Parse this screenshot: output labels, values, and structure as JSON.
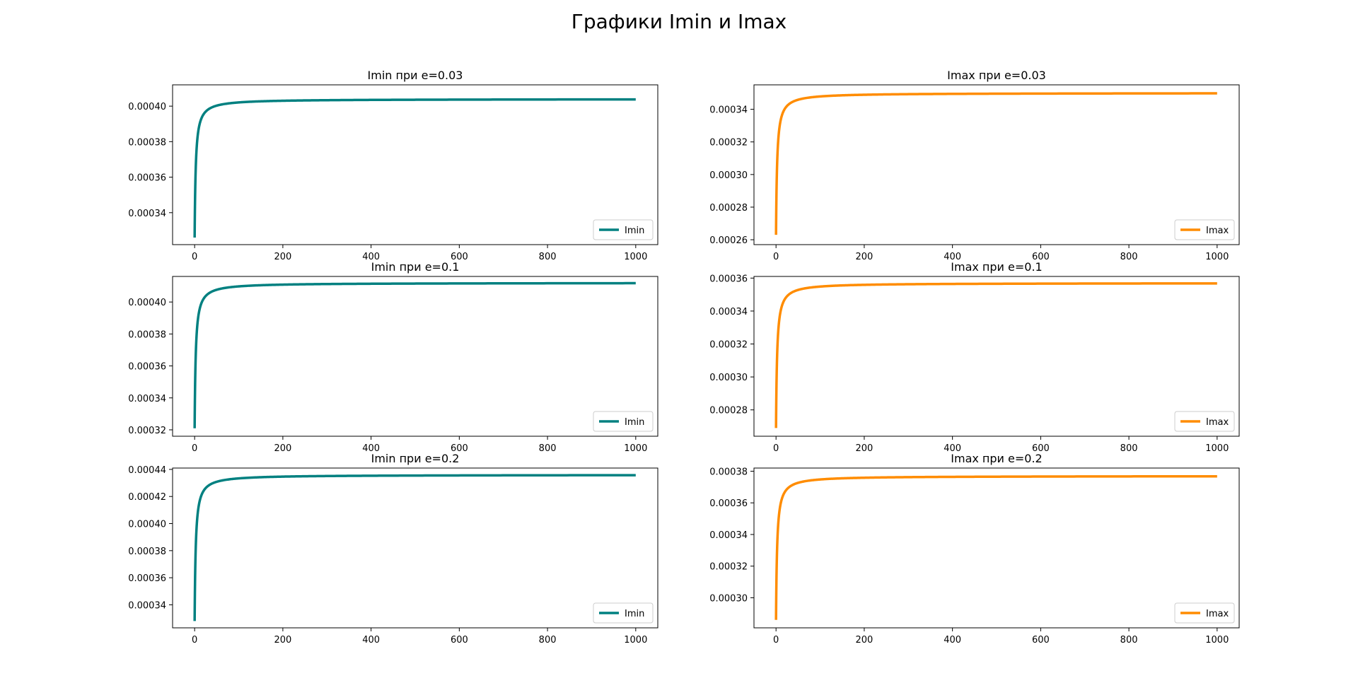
{
  "suptitle": "Графики Imin и Imax",
  "chart_data": [
    {
      "type": "line",
      "title": "Imin при e=0.03",
      "color": "#008080",
      "xlim": [
        -50,
        1050
      ],
      "ylim": [
        0.000322,
        0.000412
      ],
      "xticks": [
        0,
        200,
        400,
        600,
        800,
        1000
      ],
      "yticks": [
        0.00034,
        0.00036,
        0.00038,
        0.0004
      ],
      "ytick_labels": [
        "0.00034",
        "0.00036",
        "0.00038",
        "0.00040"
      ],
      "legend": "lower-right",
      "series": [
        {
          "name": "Imin",
          "start": [
            0,
            0.000326
          ],
          "asymptote": 0.000404,
          "x_max": 1000
        }
      ]
    },
    {
      "type": "line",
      "title": "Imax при e=0.03",
      "color": "#ff8c00",
      "xlim": [
        -50,
        1050
      ],
      "ylim": [
        0.000257,
        0.000355
      ],
      "xticks": [
        0,
        200,
        400,
        600,
        800,
        1000
      ],
      "yticks": [
        0.00026,
        0.00028,
        0.0003,
        0.00032,
        0.00034
      ],
      "ytick_labels": [
        "0.00026",
        "0.00028",
        "0.00030",
        "0.00032",
        "0.00034"
      ],
      "legend": "lower-right",
      "series": [
        {
          "name": "Imax",
          "start": [
            0,
            0.000263
          ],
          "asymptote": 0.00035,
          "x_max": 1000
        }
      ]
    },
    {
      "type": "line",
      "title": "Imin при e=0.1",
      "color": "#008080",
      "xlim": [
        -50,
        1050
      ],
      "ylim": [
        0.000316,
        0.000416
      ],
      "xticks": [
        0,
        200,
        400,
        600,
        800,
        1000
      ],
      "yticks": [
        0.00032,
        0.00034,
        0.00036,
        0.00038,
        0.0004
      ],
      "ytick_labels": [
        "0.00032",
        "0.00034",
        "0.00036",
        "0.00038",
        "0.00040"
      ],
      "legend": "lower-right",
      "series": [
        {
          "name": "Imin",
          "start": [
            0,
            0.000321
          ],
          "asymptote": 0.000412,
          "x_max": 1000
        }
      ]
    },
    {
      "type": "line",
      "title": "Imax при e=0.1",
      "color": "#ff8c00",
      "xlim": [
        -50,
        1050
      ],
      "ylim": [
        0.000264,
        0.000361
      ],
      "xticks": [
        0,
        200,
        400,
        600,
        800,
        1000
      ],
      "yticks": [
        0.00028,
        0.0003,
        0.00032,
        0.00034,
        0.00036
      ],
      "ytick_labels": [
        "0.00028",
        "0.00030",
        "0.00032",
        "0.00034",
        "0.00036"
      ],
      "legend": "lower-right",
      "series": [
        {
          "name": "Imax",
          "start": [
            0,
            0.000269
          ],
          "asymptote": 0.000357,
          "x_max": 1000
        }
      ]
    },
    {
      "type": "line",
      "title": "Imin при e=0.2",
      "color": "#008080",
      "xlim": [
        -50,
        1050
      ],
      "ylim": [
        0.000323,
        0.000441
      ],
      "xticks": [
        0,
        200,
        400,
        600,
        800,
        1000
      ],
      "yticks": [
        0.00034,
        0.00036,
        0.00038,
        0.0004,
        0.00042,
        0.00044
      ],
      "ytick_labels": [
        "0.00034",
        "0.00036",
        "0.00038",
        "0.00040",
        "0.00042",
        "0.00044"
      ],
      "legend": "lower-right",
      "series": [
        {
          "name": "Imin",
          "start": [
            0,
            0.000328
          ],
          "asymptote": 0.000436,
          "x_max": 1000
        }
      ]
    },
    {
      "type": "line",
      "title": "Imax при e=0.2",
      "color": "#ff8c00",
      "xlim": [
        -50,
        1050
      ],
      "ylim": [
        0.000281,
        0.000382
      ],
      "xticks": [
        0,
        200,
        400,
        600,
        800,
        1000
      ],
      "yticks": [
        0.0003,
        0.00032,
        0.00034,
        0.00036,
        0.00038
      ],
      "ytick_labels": [
        "0.00030",
        "0.00032",
        "0.00034",
        "0.00036",
        "0.00038"
      ],
      "legend": "lower-right",
      "series": [
        {
          "name": "Imax",
          "start": [
            0,
            0.000286
          ],
          "asymptote": 0.000377,
          "x_max": 1000
        }
      ]
    }
  ]
}
